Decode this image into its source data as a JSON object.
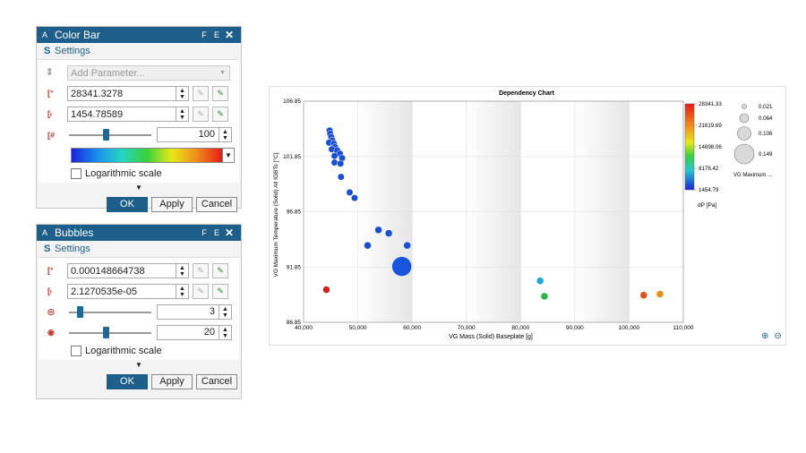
{
  "colorbar_dialog": {
    "app_letter": "A",
    "title": "Color Bar",
    "btn_f": "F",
    "btn_e": "E",
    "close": "✕",
    "section_letter": "S",
    "section_title": "Settings",
    "param_placeholder": "Add Parameter...",
    "max_value": "28341.3278",
    "min_value": "1454.78589",
    "steps_value": "100",
    "steps_slider_fraction": 0.45,
    "log_label": "Logarithmic scale",
    "ok": "OK",
    "apply": "Apply",
    "cancel": "Cancel"
  },
  "bubbles_dialog": {
    "app_letter": "A",
    "title": "Bubbles",
    "btn_f": "F",
    "btn_e": "E",
    "close": "✕",
    "section_letter": "S",
    "section_title": "Settings",
    "max_value": "0.000148664738",
    "min_value": "2.1270535e-05",
    "min_size": "3",
    "min_size_fraction": 0.1,
    "max_size": "20",
    "max_size_fraction": 0.45,
    "log_label": "Logarithmic scale",
    "ok": "OK",
    "apply": "Apply",
    "cancel": "Cancel"
  },
  "icons": {
    "max_icon": "max-arrow-icon",
    "min_icon": "min-arrow-icon",
    "steps_icon": "steps-icon",
    "size_min_icon": "bubble-min-size-icon",
    "size_max_icon": "bubble-max-size-icon"
  },
  "colors": {
    "titlebar": "#1d5f8a",
    "accent": "#1d5f8a"
  },
  "chart_data": {
    "type": "scatter",
    "title": "Dependency Chart",
    "xlabel": "VG Mass (Solid) Baseplate [g]",
    "ylabel": "VG Maximum Temperature (Solid) All IGBTs [°C]",
    "xlim": [
      40000,
      110000
    ],
    "ylim": [
      86.85,
      106.85
    ],
    "xticks": [
      "40,000",
      "50,000",
      "60,000",
      "70,000",
      "80,000",
      "90,000",
      "100,000",
      "110,000"
    ],
    "yticks": [
      "86.85",
      "91.85",
      "96.85",
      "101.85",
      "106.85"
    ],
    "color_legend": {
      "title": "dP [Pa]",
      "ticks": [
        "28341.33",
        "21619.69",
        "14898.06",
        "8176.42",
        "1454.79"
      ]
    },
    "size_legend": {
      "title": "VG Maximum ...",
      "values": [
        "0.021",
        "0.064",
        "0.106",
        "0.149"
      ]
    },
    "points": [
      {
        "x": 44800,
        "y": 104.2,
        "size": 0.025,
        "color": "#1a4fd0"
      },
      {
        "x": 44900,
        "y": 103.9,
        "size": 0.025,
        "color": "#1a4fd0"
      },
      {
        "x": 45100,
        "y": 103.6,
        "size": 0.025,
        "color": "#1a4fd0"
      },
      {
        "x": 45300,
        "y": 103.3,
        "size": 0.025,
        "color": "#1a4fd0"
      },
      {
        "x": 44700,
        "y": 103.1,
        "size": 0.025,
        "color": "#1a4fd0"
      },
      {
        "x": 45600,
        "y": 103.0,
        "size": 0.025,
        "color": "#1a4fd0"
      },
      {
        "x": 45800,
        "y": 102.7,
        "size": 0.025,
        "color": "#1a4fd0"
      },
      {
        "x": 45200,
        "y": 102.5,
        "size": 0.025,
        "color": "#1a4fd0"
      },
      {
        "x": 46200,
        "y": 102.4,
        "size": 0.025,
        "color": "#1a4fd0"
      },
      {
        "x": 46700,
        "y": 102.1,
        "size": 0.025,
        "color": "#1a4fd0"
      },
      {
        "x": 45700,
        "y": 101.9,
        "size": 0.025,
        "color": "#1a4fd0"
      },
      {
        "x": 47100,
        "y": 101.7,
        "size": 0.025,
        "color": "#1a4fd0"
      },
      {
        "x": 45700,
        "y": 101.3,
        "size": 0.025,
        "color": "#1a4fd0"
      },
      {
        "x": 46800,
        "y": 101.2,
        "size": 0.025,
        "color": "#1a4fd0"
      },
      {
        "x": 46900,
        "y": 100.0,
        "size": 0.025,
        "color": "#1a4fd0"
      },
      {
        "x": 48500,
        "y": 98.6,
        "size": 0.025,
        "color": "#1a4fd0"
      },
      {
        "x": 49400,
        "y": 98.1,
        "size": 0.025,
        "color": "#1a4fd0"
      },
      {
        "x": 53800,
        "y": 95.2,
        "size": 0.03,
        "color": "#1a4fd0"
      },
      {
        "x": 55700,
        "y": 94.9,
        "size": 0.03,
        "color": "#1a4fd0"
      },
      {
        "x": 51800,
        "y": 93.8,
        "size": 0.03,
        "color": "#1a4fd0"
      },
      {
        "x": 59100,
        "y": 93.8,
        "size": 0.03,
        "color": "#1a4fd0"
      },
      {
        "x": 58100,
        "y": 91.9,
        "size": 0.149,
        "color": "#1a55e0"
      },
      {
        "x": 44200,
        "y": 89.8,
        "size": 0.03,
        "color": "#d9201a"
      },
      {
        "x": 83600,
        "y": 90.6,
        "size": 0.03,
        "color": "#22a6d8"
      },
      {
        "x": 84400,
        "y": 89.2,
        "size": 0.03,
        "color": "#2ab54a"
      },
      {
        "x": 102700,
        "y": 89.3,
        "size": 0.03,
        "color": "#e0521a"
      },
      {
        "x": 105700,
        "y": 89.4,
        "size": 0.03,
        "color": "#e8901a"
      }
    ]
  }
}
